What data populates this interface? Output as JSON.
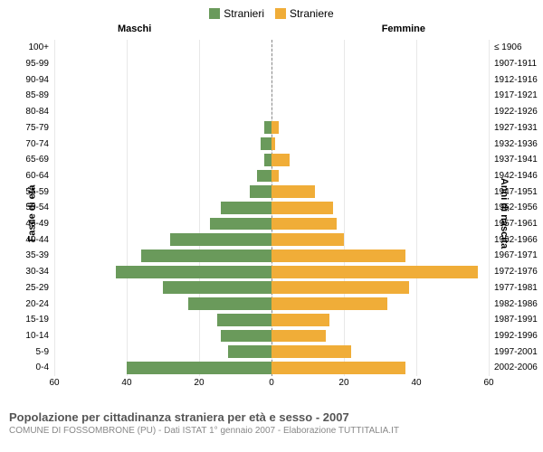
{
  "legend": {
    "male": {
      "label": "Stranieri",
      "color": "#6a9a5b"
    },
    "female": {
      "label": "Straniere",
      "color": "#f0ad38"
    }
  },
  "headers": {
    "male": "Maschi",
    "female": "Femmine"
  },
  "axis_titles": {
    "left": "Fasce di età",
    "right": "Anni di nascita"
  },
  "chart": {
    "type": "population-pyramid",
    "xlim": 60,
    "xticks": [
      60,
      40,
      20,
      0,
      20,
      40,
      60
    ],
    "bar_height_ratio": 0.78,
    "gridline_color": "#e8e8e8",
    "center_line_color": "#888888",
    "background_color": "#ffffff",
    "text_color": "#555555",
    "label_fontsize": 10,
    "tick_fontsize": 10,
    "header_fontsize": 11,
    "rows": [
      {
        "age": "100+",
        "birth": "≤ 1906",
        "m": 0,
        "f": 0
      },
      {
        "age": "95-99",
        "birth": "1907-1911",
        "m": 0,
        "f": 0
      },
      {
        "age": "90-94",
        "birth": "1912-1916",
        "m": 0,
        "f": 0
      },
      {
        "age": "85-89",
        "birth": "1917-1921",
        "m": 0,
        "f": 0
      },
      {
        "age": "80-84",
        "birth": "1922-1926",
        "m": 0,
        "f": 0
      },
      {
        "age": "75-79",
        "birth": "1927-1931",
        "m": 2,
        "f": 2
      },
      {
        "age": "70-74",
        "birth": "1932-1936",
        "m": 3,
        "f": 1
      },
      {
        "age": "65-69",
        "birth": "1937-1941",
        "m": 2,
        "f": 5
      },
      {
        "age": "60-64",
        "birth": "1942-1946",
        "m": 4,
        "f": 2
      },
      {
        "age": "55-59",
        "birth": "1947-1951",
        "m": 6,
        "f": 12
      },
      {
        "age": "50-54",
        "birth": "1952-1956",
        "m": 14,
        "f": 17
      },
      {
        "age": "45-49",
        "birth": "1957-1961",
        "m": 17,
        "f": 18
      },
      {
        "age": "40-44",
        "birth": "1962-1966",
        "m": 28,
        "f": 20
      },
      {
        "age": "35-39",
        "birth": "1967-1971",
        "m": 36,
        "f": 37
      },
      {
        "age": "30-34",
        "birth": "1972-1976",
        "m": 43,
        "f": 57
      },
      {
        "age": "25-29",
        "birth": "1977-1981",
        "m": 30,
        "f": 38
      },
      {
        "age": "20-24",
        "birth": "1982-1986",
        "m": 23,
        "f": 32
      },
      {
        "age": "15-19",
        "birth": "1987-1991",
        "m": 15,
        "f": 16
      },
      {
        "age": "10-14",
        "birth": "1992-1996",
        "m": 14,
        "f": 15
      },
      {
        "age": "5-9",
        "birth": "1997-2001",
        "m": 12,
        "f": 22
      },
      {
        "age": "0-4",
        "birth": "2002-2006",
        "m": 40,
        "f": 37
      }
    ]
  },
  "footer": {
    "title": "Popolazione per cittadinanza straniera per età e sesso - 2007",
    "subtitle": "COMUNE DI FOSSOMBRONE (PU) - Dati ISTAT 1° gennaio 2007 - Elaborazione TUTTITALIA.IT"
  }
}
